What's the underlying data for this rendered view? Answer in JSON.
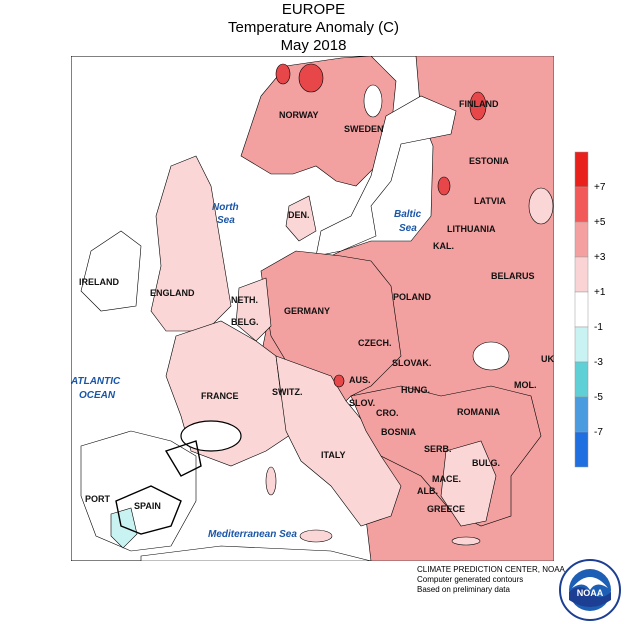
{
  "title": {
    "line1": "EUROPE",
    "line2": "Temperature Anomaly (C)",
    "line3": "May 2018"
  },
  "countries": [
    "NORWAY",
    "SWEDEN",
    "FINLAND",
    "ESTONIA",
    "LATVIA",
    "LITHUANIA",
    "KAL.",
    "BELARUS",
    "DEN.",
    "IRELAND",
    "ENGLAND",
    "NETH.",
    "BELG.",
    "GERMANY",
    "POLAND",
    "CZECH.",
    "SLOVAK.",
    "UK",
    "MOL.",
    "FRANCE",
    "SWITZ.",
    "AUS.",
    "SLOV.",
    "HUNG.",
    "CRO.",
    "ROMANIA",
    "BOSNIA",
    "SERB.",
    "BULG.",
    "ITALY",
    "MACE.",
    "ALB.",
    "GREECE",
    "PORT",
    "SPAIN"
  ],
  "seas": [
    "North",
    "Sea",
    "Baltic",
    "Sea",
    "ATLANTIC",
    "OCEAN",
    "Mediterranean Sea"
  ],
  "legend": {
    "labels": [
      "+7",
      "+5",
      "+3",
      "+1",
      "-1",
      "-3",
      "-5",
      "-7"
    ],
    "colors": [
      "#e8211d",
      "#f25a5a",
      "#f5a0a0",
      "#fad4d4",
      "#ffffff",
      "#c9f3f3",
      "#5fd0d6",
      "#4a9be0",
      "#1f6fe0"
    ]
  },
  "credits": {
    "line1": "CLIMATE PREDICTION CENTER, NOAA",
    "line2": "Computer generated contours",
    "line3": "Based on preliminary data"
  },
  "logo": {
    "text": "NOAA",
    "ring": "NATIONAL OCEANIC AND ATMOSPHERIC ADMINISTRATION · U.S. DEPARTMENT OF COMMERCE"
  },
  "colors": {
    "anom_3_5": "#f2a0a0",
    "anom_1_3": "#fad6d6",
    "anom_5_7": "#e8474a",
    "anom_neg": "#c9f3f3",
    "land_neutral": "#ffffff"
  }
}
